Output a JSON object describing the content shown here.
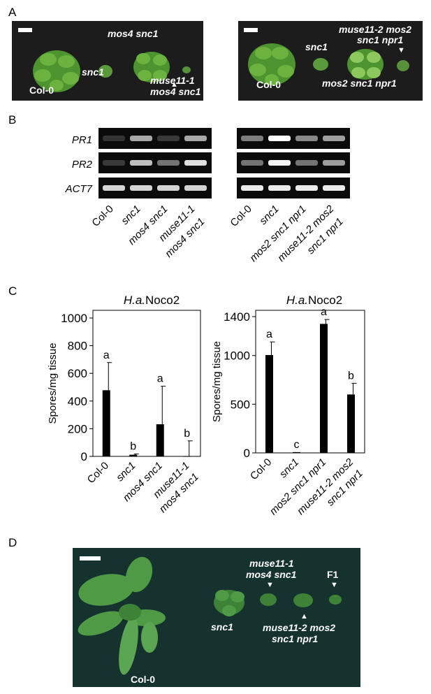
{
  "panels": {
    "a": "A",
    "b": "B",
    "c": "C",
    "d": "D"
  },
  "panelA": {
    "left": {
      "col0": "Col-0",
      "snc1": "snc1",
      "mos4": "mos4 snc1",
      "muse11_l1": "muse11-1",
      "muse11_l2": "mos4 snc1"
    },
    "right": {
      "col0": "Col-0",
      "snc1": "snc1",
      "mos2": "mos2 snc1 npr1",
      "muse11_l1": "muse11-2 mos2",
      "muse11_l2": "snc1 npr1"
    }
  },
  "panelB": {
    "genes": [
      "PR1",
      "PR2",
      "ACT7"
    ],
    "left_lanes": [
      "Col-0",
      "snc1",
      "mos4 snc1",
      "muse11-1",
      "mos4 snc1"
    ],
    "right_lanes": [
      "Col-0",
      "snc1",
      "mos2 snc1 npr1",
      "muse11-2 mos2",
      "snc1 npr1"
    ],
    "band_intensity": {
      "left": {
        "PR1": [
          0.05,
          0.6,
          0.08,
          0.6
        ],
        "PR2": [
          0.08,
          0.7,
          0.35,
          0.85
        ],
        "ACT7": [
          0.8,
          0.8,
          0.8,
          0.8
        ]
      },
      "right": {
        "PR1": [
          0.4,
          1.0,
          0.45,
          0.55
        ],
        "PR2": [
          0.35,
          0.95,
          0.35,
          0.55
        ],
        "ACT7": [
          0.9,
          0.9,
          0.9,
          0.9
        ]
      }
    }
  },
  "chart_data": [
    {
      "type": "bar",
      "title_italic": "H.a.",
      "title_rest": "Noco2",
      "ylabel": "Spores/mg tissue",
      "ylim": [
        0,
        1000
      ],
      "yticks": [
        0,
        200,
        400,
        600,
        800,
        1000
      ],
      "categories": [
        "Col-0",
        "snc1",
        "mos4 snc1",
        "muse11-1 mos4 snc1"
      ],
      "category_labels": [
        "Col-0",
        "snc1",
        "mos4 snc1",
        "muse11-1",
        "mos4 snc1"
      ],
      "values": [
        478,
        12,
        232,
        2
      ],
      "errors": [
        200,
        5,
        275,
        110
      ],
      "letters": [
        "a",
        "b",
        "a",
        "b"
      ]
    },
    {
      "type": "bar",
      "title_italic": "H.a.",
      "title_rest": "Noco2",
      "ylabel": "Spores/mg tissue",
      "ylim": [
        0,
        1400
      ],
      "yticks": [
        0,
        500,
        1000,
        1400
      ],
      "categories": [
        "Col-0",
        "snc1",
        "mos2 snc1 npr1",
        "muse11-2 mos2 snc1 npr1"
      ],
      "category_labels": [
        "Col-0",
        "snc1",
        "mos2 snc1 npr1",
        "muse11-2 mos2",
        "snc1 npr1"
      ],
      "values": [
        1005,
        8,
        1325,
        600
      ],
      "errors": [
        135,
        0,
        45,
        115
      ],
      "letters": [
        "a",
        "c",
        "a",
        "b"
      ]
    }
  ],
  "panelD": {
    "col0": "Col-0",
    "snc1": "snc1",
    "muse11_1_l1": "muse11-1",
    "muse11_1_l2": "mos4 snc1",
    "f1": "F1",
    "muse11_2_l1": "muse11-2 mos2",
    "muse11_2_l2": "snc1 npr1"
  },
  "colors": {
    "photo_bg": "#1c1c1c",
    "photo_d_bg": "#15322f",
    "leaf": "#5faa3a",
    "bar": "#000000"
  }
}
